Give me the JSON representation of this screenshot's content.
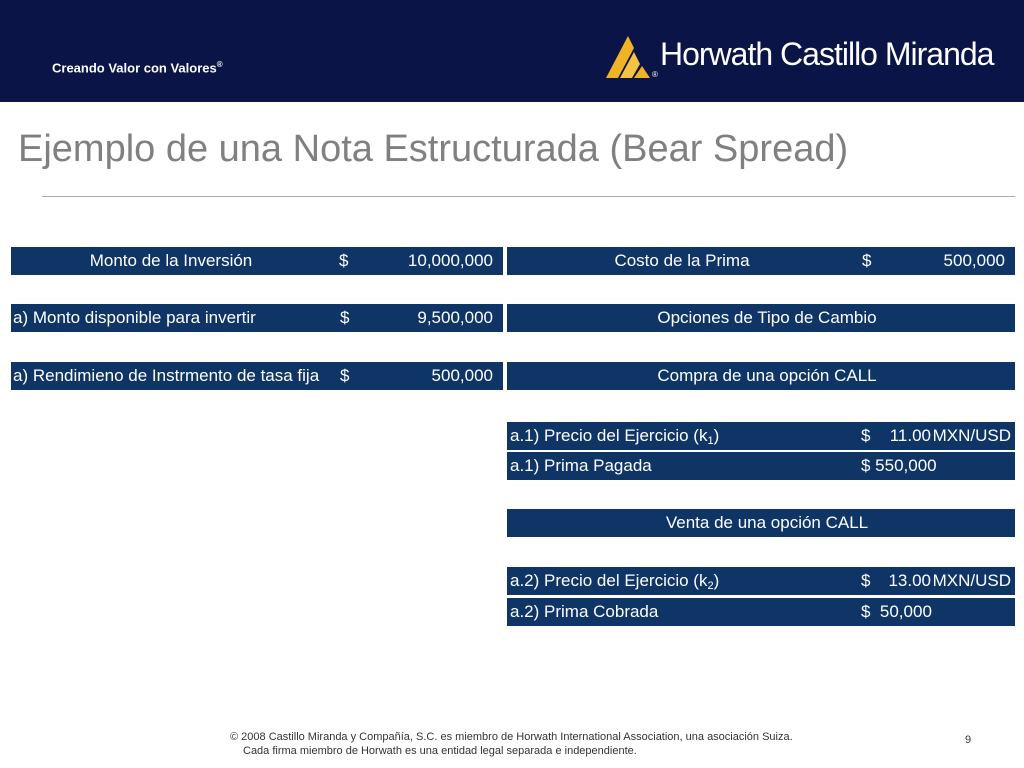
{
  "header": {
    "tagline": "Creando Valor con Valores",
    "tagline_mark": "®",
    "logo": "Horwath Castillo Miranda",
    "logo_mark": "®"
  },
  "title": "Ejemplo de una Nota Estructurada (Bear Spread)",
  "left_table": [
    {
      "label": "Monto de la Inversión",
      "currency": "$",
      "amount": "10,000,000"
    },
    {
      "label": "a) Monto disponible para invertir",
      "currency": "$",
      "amount": "9,500,000"
    },
    {
      "label": "a) Rendimieno de Instrmento de tasa fija",
      "currency": "$",
      "amount": "500,000"
    }
  ],
  "right_table": {
    "premium": {
      "label": "Costo de la Prima",
      "currency": "$",
      "amount": "500,000"
    },
    "options_heading": "Opciones de Tipo de Cambio",
    "buy_heading": "Compra de una opción  CALL",
    "buy_strike": {
      "label": "a.1) Precio del Ejercicio (k",
      "sub": "1",
      "tail": ")",
      "currency": "$",
      "amount": "11.00",
      "unit": "MXN/USD"
    },
    "buy_premium": {
      "label": "a.1) Prima Pagada",
      "amount": "$ 550,000"
    },
    "sell_heading": "Venta de una opción  CALL",
    "sell_strike": {
      "label": "a.2) Precio del Ejercicio (k",
      "sub": "2",
      "tail": ")",
      "currency": "$",
      "amount": "13.00",
      "unit": "MXN/USD"
    },
    "sell_premium": {
      "label": "a.2) Prima Cobrada",
      "amount": "$  50,000"
    }
  },
  "footer": {
    "lines": [
      "© 2008 Castillo Miranda y Compañía, S.C. es miembro de Horwath International Association, una asociación Suiza.",
      "Cada firma miembro de Horwath es una entidad legal separada e independiente."
    ],
    "page": "9"
  }
}
